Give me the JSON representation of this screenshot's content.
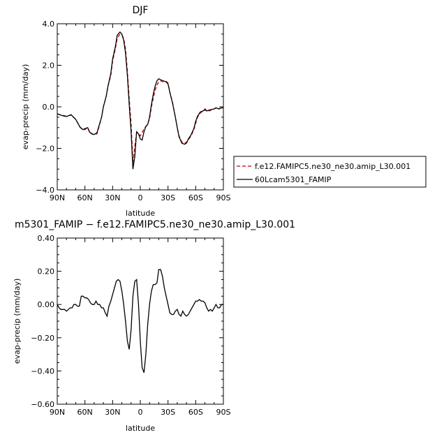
{
  "chart_data": [
    {
      "type": "line",
      "title": "DJF",
      "xlabel": "latitude",
      "ylabel": "evap-precip (mm/day)",
      "xlim": [
        90,
        -90
      ],
      "ylim": [
        -4.0,
        4.0
      ],
      "xticks": [
        90,
        60,
        30,
        0,
        -30,
        -60,
        -90
      ],
      "xtick_labels": [
        "90N",
        "60N",
        "30N",
        "0",
        "30S",
        "60S",
        "90S"
      ],
      "yticks": [
        -4.0,
        -2.0,
        0.0,
        2.0,
        4.0
      ],
      "ytick_labels": [
        "−4.0",
        "−2.0",
        "0.0",
        "2.0",
        "4.0"
      ],
      "grid": false,
      "legend": "right",
      "series": [
        {
          "name": "f.e12.FAMIPC5.ne30_ne30.amip_L30.001",
          "color": "#cc0000",
          "style": "dashed",
          "x": [
            90,
            85,
            80,
            75,
            70,
            65,
            62,
            60,
            57,
            55,
            52,
            50,
            47,
            45,
            42,
            40,
            37,
            35,
            32,
            30,
            27,
            25,
            22,
            20,
            18,
            16,
            14,
            12,
            10,
            8,
            6,
            4,
            2,
            0,
            -2,
            -4,
            -6,
            -8,
            -10,
            -12,
            -14,
            -16,
            -18,
            -20,
            -22,
            -25,
            -28,
            -30,
            -32,
            -35,
            -38,
            -40,
            -42,
            -45,
            -48,
            -50,
            -52,
            -55,
            -58,
            -60,
            -62,
            -65,
            -68,
            -70,
            -72,
            -75,
            -78,
            -80,
            -82,
            -85,
            -88,
            -90
          ],
          "y": [
            -0.35,
            -0.4,
            -0.45,
            -0.4,
            -0.6,
            -1.0,
            -1.05,
            -1.1,
            -1.0,
            -1.2,
            -1.3,
            -1.35,
            -1.3,
            -1.0,
            -0.5,
            0.0,
            0.5,
            1.0,
            1.5,
            2.2,
            2.8,
            3.3,
            3.5,
            3.45,
            3.3,
            2.8,
            1.7,
            0.4,
            -0.8,
            -2.7,
            -1.9,
            -1.25,
            -1.3,
            -1.4,
            -1.25,
            -1.05,
            -0.95,
            -0.8,
            -0.6,
            0.0,
            0.4,
            0.8,
            1.05,
            1.2,
            1.25,
            1.2,
            1.22,
            1.15,
            0.7,
            0.2,
            -0.5,
            -1.0,
            -1.4,
            -1.7,
            -1.75,
            -1.7,
            -1.6,
            -1.4,
            -1.1,
            -0.8,
            -0.5,
            -0.3,
            -0.2,
            -0.1,
            -0.15,
            -0.2,
            -0.12,
            -0.1,
            -0.05,
            -0.1,
            -0.05,
            -0.05
          ]
        },
        {
          "name": "60Lcam5301_FAMIP",
          "color": "#000000",
          "style": "solid",
          "x": [
            90,
            85,
            80,
            75,
            70,
            65,
            62,
            60,
            57,
            55,
            52,
            50,
            47,
            45,
            42,
            40,
            37,
            35,
            32,
            30,
            27,
            25,
            22,
            20,
            18,
            16,
            14,
            12,
            10,
            8,
            6,
            4,
            2,
            0,
            -2,
            -4,
            -6,
            -8,
            -10,
            -12,
            -14,
            -16,
            -18,
            -20,
            -22,
            -25,
            -28,
            -30,
            -32,
            -35,
            -38,
            -40,
            -42,
            -45,
            -48,
            -50,
            -52,
            -55,
            -58,
            -60,
            -62,
            -65,
            -68,
            -70,
            -72,
            -75,
            -78,
            -80,
            -82,
            -85,
            -88,
            -90
          ],
          "y": [
            -0.33,
            -0.42,
            -0.47,
            -0.38,
            -0.6,
            -1.0,
            -1.1,
            -1.05,
            -1.0,
            -1.22,
            -1.32,
            -1.33,
            -1.25,
            -0.95,
            -0.5,
            0.0,
            0.5,
            1.0,
            1.6,
            2.3,
            2.9,
            3.45,
            3.6,
            3.5,
            3.2,
            2.6,
            1.5,
            0.1,
            -1.2,
            -3.0,
            -2.4,
            -1.2,
            -1.3,
            -1.55,
            -1.6,
            -1.2,
            -0.95,
            -0.85,
            -0.5,
            0.1,
            0.6,
            1.0,
            1.25,
            1.35,
            1.3,
            1.25,
            1.2,
            1.1,
            0.7,
            0.15,
            -0.5,
            -1.0,
            -1.45,
            -1.75,
            -1.8,
            -1.75,
            -1.55,
            -1.35,
            -1.05,
            -0.7,
            -0.45,
            -0.25,
            -0.2,
            -0.15,
            -0.2,
            -0.15,
            -0.12,
            -0.1,
            -0.05,
            -0.1,
            -0.05,
            -0.05
          ]
        }
      ]
    },
    {
      "type": "line",
      "title": "m5301_FAMIP − f.e12.FAMIPC5.ne30_ne30.amip_L30.001",
      "xlabel": "latitude",
      "ylabel": "evap-precip (mm/day)",
      "xlim": [
        90,
        -90
      ],
      "ylim": [
        -0.6,
        0.4
      ],
      "xticks": [
        90,
        60,
        30,
        0,
        -30,
        -60,
        -90
      ],
      "xtick_labels": [
        "90N",
        "60N",
        "30N",
        "0",
        "30S",
        "60S",
        "90S"
      ],
      "yticks": [
        -0.6,
        -0.4,
        -0.2,
        0.0,
        0.2,
        0.4
      ],
      "ytick_labels": [
        "−0.60",
        "−0.40",
        "−0.20",
        "0.00",
        "0.20",
        "0.40"
      ],
      "grid": false,
      "series": [
        {
          "color": "#000000",
          "style": "solid",
          "x": [
            90,
            88,
            86,
            84,
            82,
            80,
            78,
            76,
            74,
            72,
            70,
            68,
            66,
            64,
            62,
            60,
            58,
            56,
            54,
            52,
            50,
            48,
            46,
            44,
            42,
            40,
            38,
            36,
            34,
            32,
            30,
            28,
            26,
            24,
            22,
            20,
            18,
            16,
            14,
            12,
            10,
            8,
            6,
            4,
            2,
            0,
            -2,
            -4,
            -6,
            -8,
            -10,
            -12,
            -14,
            -16,
            -18,
            -20,
            -22,
            -24,
            -26,
            -28,
            -30,
            -32,
            -34,
            -36,
            -38,
            -40,
            -42,
            -44,
            -46,
            -48,
            -50,
            -52,
            -54,
            -56,
            -58,
            -60,
            -62,
            -64,
            -66,
            -68,
            -70,
            -72,
            -74,
            -76,
            -78,
            -80,
            -82,
            -84,
            -86,
            -88,
            -90
          ],
          "y": [
            0.0,
            -0.02,
            -0.03,
            -0.03,
            -0.03,
            -0.04,
            -0.03,
            -0.02,
            -0.02,
            0.0,
            0.0,
            -0.01,
            -0.01,
            0.05,
            0.05,
            0.04,
            0.04,
            0.03,
            0.01,
            0.0,
            0.0,
            0.02,
            0.0,
            0.0,
            -0.02,
            -0.02,
            -0.05,
            -0.07,
            -0.01,
            0.02,
            0.06,
            0.1,
            0.14,
            0.15,
            0.14,
            0.08,
            0.0,
            -0.1,
            -0.22,
            -0.27,
            -0.15,
            0.05,
            0.14,
            0.15,
            0.0,
            -0.22,
            -0.38,
            -0.41,
            -0.3,
            -0.12,
            0.0,
            0.08,
            0.12,
            0.12,
            0.13,
            0.21,
            0.21,
            0.17,
            0.1,
            0.05,
            0.0,
            -0.05,
            -0.06,
            -0.06,
            -0.04,
            -0.03,
            -0.06,
            -0.07,
            -0.04,
            -0.06,
            -0.07,
            -0.06,
            -0.04,
            -0.02,
            0.0,
            0.02,
            0.02,
            0.03,
            0.02,
            0.02,
            0.01,
            -0.02,
            -0.04,
            -0.03,
            -0.04,
            -0.02,
            0.0,
            -0.02,
            -0.02,
            0.0,
            0.0
          ]
        }
      ]
    }
  ]
}
